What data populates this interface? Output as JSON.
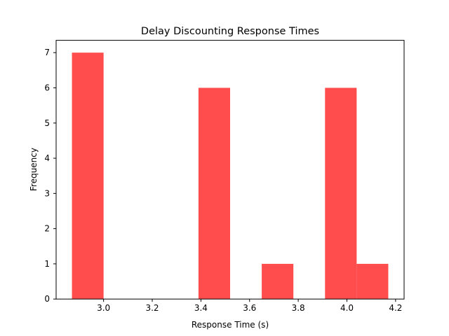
{
  "chart_data": {
    "type": "bar",
    "subtype": "histogram",
    "title": "Delay Discounting Response Times",
    "xlabel": "Response Time (s)",
    "ylabel": "Frequency",
    "bins": [
      {
        "start": 2.87,
        "end": 3.0,
        "count": 7
      },
      {
        "start": 3.0,
        "end": 3.13,
        "count": 0
      },
      {
        "start": 3.13,
        "end": 3.26,
        "count": 0
      },
      {
        "start": 3.26,
        "end": 3.39,
        "count": 0
      },
      {
        "start": 3.39,
        "end": 3.52,
        "count": 6
      },
      {
        "start": 3.52,
        "end": 3.65,
        "count": 0
      },
      {
        "start": 3.65,
        "end": 3.78,
        "count": 1
      },
      {
        "start": 3.78,
        "end": 3.91,
        "count": 0
      },
      {
        "start": 3.91,
        "end": 4.04,
        "count": 6
      },
      {
        "start": 4.04,
        "end": 4.17,
        "count": 1
      }
    ],
    "xlim": [
      2.805,
      4.235
    ],
    "ylim": [
      0,
      7.35
    ],
    "xticks": [
      3.0,
      3.2,
      3.4,
      3.6,
      3.8,
      4.0,
      4.2
    ],
    "xtick_labels": [
      "3.0",
      "3.2",
      "3.4",
      "3.6",
      "3.8",
      "4.0",
      "4.2"
    ],
    "yticks": [
      0,
      1,
      2,
      3,
      4,
      5,
      6,
      7
    ],
    "ytick_labels": [
      "0",
      "1",
      "2",
      "3",
      "4",
      "5",
      "6",
      "7"
    ],
    "bar_color": "#ff4d4d",
    "grid": false,
    "legend": "none"
  }
}
